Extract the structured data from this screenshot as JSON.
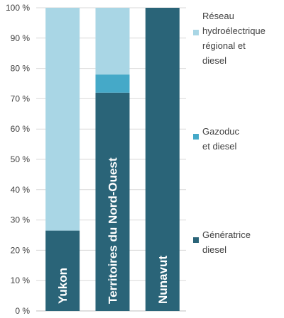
{
  "chart_data": {
    "type": "bar",
    "stacked": true,
    "categories": [
      "Yukon",
      "Territoires du Nord-Ouest",
      "Nunavut"
    ],
    "series": [
      {
        "name": "Génératrice diesel",
        "values": [
          26.5,
          72,
          100
        ],
        "color": "#2a6478"
      },
      {
        "name": "Gazoduc et diesel",
        "values": [
          0,
          6,
          0
        ],
        "color": "#45a9c8"
      },
      {
        "name": "Réseau hydroélectrique régional et diesel",
        "values": [
          73.5,
          22,
          0
        ],
        "color": "#a9d6e5"
      }
    ],
    "legend": {
      "placement": "right",
      "entries": [
        {
          "series": 2,
          "lines": [
            "Réseau",
            "hydroélectrique",
            "régional et",
            "diesel"
          ]
        },
        {
          "series": 1,
          "lines": [
            "Gazoduc",
            "et diesel"
          ]
        },
        {
          "series": 0,
          "lines": [
            "Génératrice",
            "diesel"
          ]
        }
      ]
    },
    "y_ticks": [
      "0 %",
      "10 %",
      "20 %",
      "30 %",
      "40 %",
      "50 %",
      "60 %",
      "70 %",
      "80 %",
      "90 %",
      "100 %"
    ],
    "ylim": [
      0,
      100
    ],
    "grid": true,
    "category_labels_inside_bars": true
  }
}
